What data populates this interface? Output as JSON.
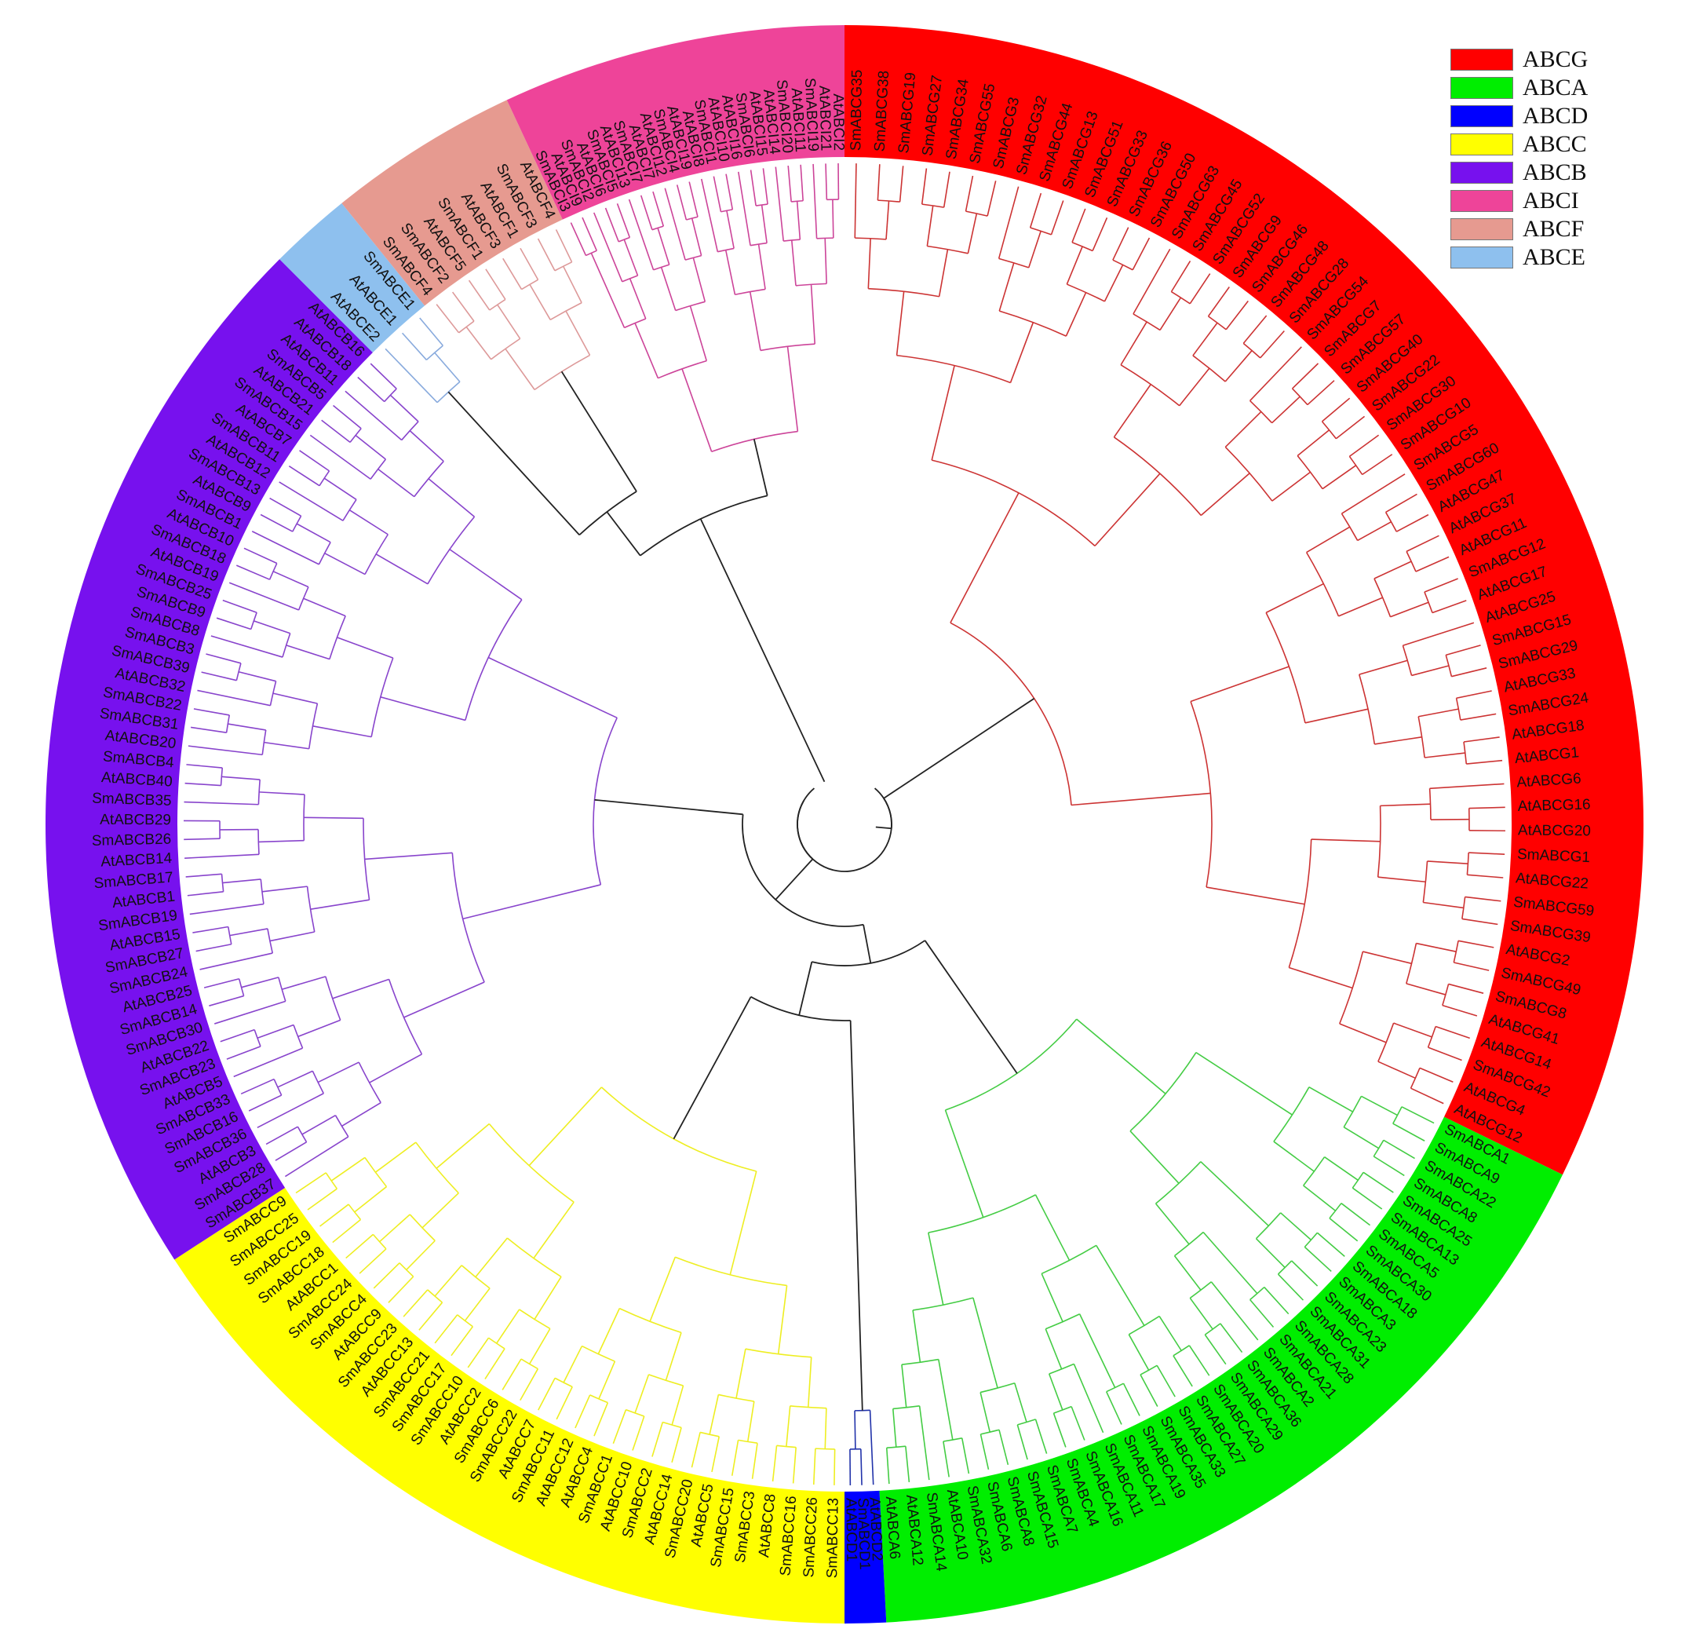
{
  "legend": [
    {
      "label": "ABCG",
      "color": "#ff0000"
    },
    {
      "label": "ABCA",
      "color": "#00ee00"
    },
    {
      "label": "ABCD",
      "color": "#0000ff"
    },
    {
      "label": "ABCC",
      "color": "#ffff00"
    },
    {
      "label": "ABCB",
      "color": "#7711ee"
    },
    {
      "label": "ABCI",
      "color": "#ee4499"
    },
    {
      "label": "ABCF",
      "color": "#e69a90"
    },
    {
      "label": "ABCE",
      "color": "#8ec0ee"
    }
  ],
  "clades": [
    {
      "family": "ABCG",
      "color": "#ff0000",
      "line": "#cc3333",
      "labels": [
        "SmABCG35",
        "SmABCG38",
        "SmABCG19",
        "SmABCG27",
        "SmABCG34",
        "SmABCG55",
        "SmABCG3",
        "SmABCG32",
        "SmABCG44",
        "SmABCG13",
        "SmABCG51",
        "SmABCG33",
        "SmABCG36",
        "SmABCG50",
        "SmABCG63",
        "SmABCG45",
        "SmABCG52",
        "SmABCG9",
        "SmABCG46",
        "SmABCG48",
        "SmABCG28",
        "SmABCG54",
        "SmABCG7",
        "SmABCG57",
        "SmABCG40",
        "SmABCG22",
        "SmABCG30",
        "SmABCG10",
        "SmABCG5",
        "SmABCG60",
        "AtABCG47",
        "AtABCG37",
        "AtABCG11",
        "SmABCG12",
        "AtABCG17",
        "AtABCG25",
        "SmABCG15",
        "SmABCG29",
        "AtABCG33",
        "SmABCG24",
        "AtABCG18",
        "AtABCG1",
        "AtABCG6",
        "AtABCG16",
        "AtABCG20",
        "SmABCG1",
        "AtABCG22",
        "SmABCG59",
        "SmABCG39",
        "AtABCG2",
        "SmABCG49",
        "SmABCG8",
        "AtABCG41",
        "AtABCG14",
        "SmABCG42",
        "AtABCG4",
        "AtABCG12"
      ]
    },
    {
      "family": "ABCA",
      "color": "#00ee00",
      "line": "#44cc44",
      "labels": [
        "SmABCA1",
        "SmABCA9",
        "SmABCA22",
        "SmABCA8",
        "SmABCA25",
        "SmABCA13",
        "SmABCA5",
        "SmABCA30",
        "SmABCA18",
        "SmABCA3",
        "SmABCA23",
        "SmABCA31",
        "SmABCA28",
        "SmABCA21",
        "SmABCA2",
        "SmABCA36",
        "SmABCA29",
        "SmABCA20",
        "SmABCA27",
        "SmABCA33",
        "SmABCA35",
        "SmABCA19",
        "SmABCA17",
        "SmABCA11",
        "SmABCA16",
        "SmABCA4",
        "SmABCA7",
        "SmABCA15",
        "SmABCA8",
        "SmABCA6",
        "SmABCA32",
        "AtABCA10",
        "SmABCA14",
        "AtABCA12",
        "AtABCA6"
      ]
    },
    {
      "family": "ABCD",
      "color": "#0000ff",
      "line": "#2233aa",
      "labels": [
        "AtABCD2",
        "SmABCD1",
        "AtABCD1"
      ]
    },
    {
      "family": "ABCC",
      "color": "#ffff00",
      "line": "#eeee22",
      "labels": [
        "SmABCC13",
        "SmABCC26",
        "SmABCC16",
        "AtABCC8",
        "SmABCC3",
        "SmABCC15",
        "AtABCC5",
        "SmABCC20",
        "AtABCC14",
        "SmABCC2",
        "AtABCC10",
        "SmABCC1",
        "AtABCC4",
        "AtABCC12",
        "SmABCC11",
        "AtABCC7",
        "SmABCC22",
        "SmABCC6",
        "AtABCC2",
        "SmABCC10",
        "SmABCC17",
        "SmABCC21",
        "AtABCC13",
        "SmABCC23",
        "AtABCC9",
        "SmABCC4",
        "SmABCC24",
        "AtABCC1",
        "SmABCC18",
        "SmABCC19",
        "SmABCC25",
        "SmABCC9"
      ]
    },
    {
      "family": "ABCB",
      "color": "#7711ee",
      "line": "#8844cc",
      "labels": [
        "SmABCB37",
        "SmABCB28",
        "AtABCB3",
        "SmABCB36",
        "SmABCB16",
        "SmABCB33",
        "AtABCB5",
        "SmABCB23",
        "AtABCB22",
        "SmABCB30",
        "SmABCB14",
        "AtABCB25",
        "SmABCB24",
        "SmABCB27",
        "AtABCB15",
        "SmABCB19",
        "AtABCB1",
        "SmABCB17",
        "AtABCB14",
        "SmABCB26",
        "AtABCB29",
        "SmABCB35",
        "AtABCB40",
        "SmABCB4",
        "AtABCB20",
        "SmABCB31",
        "SmABCB22",
        "AtABCB32",
        "SmABCB39",
        "SmABCB3",
        "SmABCB8",
        "SmABCB9",
        "SmABCB25",
        "AtABCB19",
        "SmABCB18",
        "AtABCB10",
        "SmABCB1",
        "AtABCB9",
        "SmABCB13",
        "AtABCB12",
        "SmABCB11",
        "AtABCB7",
        "SmABCB15",
        "AtABCB21",
        "SmABCB5",
        "AtABCB11",
        "AtABCB18",
        "AtABCB16"
      ]
    },
    {
      "family": "ABCE",
      "color": "#8ec0ee",
      "line": "#88aadd",
      "labels": [
        "AtABCE2",
        "AtABCE1",
        "SmABCE1"
      ]
    },
    {
      "family": "ABCF",
      "color": "#e69a90",
      "line": "#dd9999",
      "labels": [
        "SmABCF4",
        "SmABCF2",
        "AtABCF5",
        "SmABCF1",
        "AtABCF3",
        "AtABCF1",
        "SmABCF3",
        "AtABCF4"
      ]
    },
    {
      "family": "ABCI",
      "color": "#ee4499",
      "line": "#cc4499",
      "labels": [
        "SmABCI3",
        "AtABCI9",
        "SmABCI2",
        "AtABCI6",
        "SmABCI5",
        "AtABCI13",
        "SmABCI7",
        "AtABCI7",
        "AtABCI12",
        "SmABCI4",
        "AtABCI19",
        "AtABCI8",
        "SmABCI1",
        "AtABCI10",
        "AtABCI16",
        "SmABCI6",
        "AtABCI15",
        "AtABCI14",
        "SmABCI20",
        "AtABCI11",
        "SmABCI19",
        "AtABCI21",
        "AtABCI2"
      ]
    }
  ]
}
